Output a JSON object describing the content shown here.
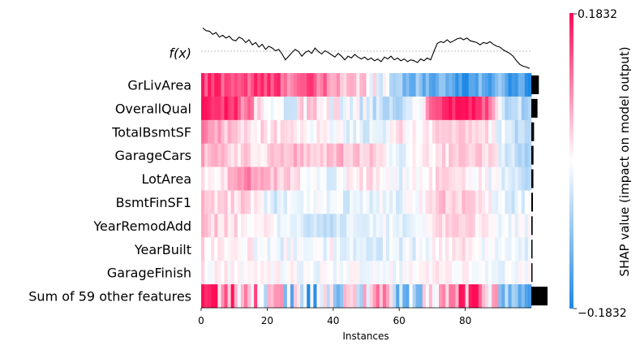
{
  "chart_data": {
    "type": "heatmap",
    "title": "",
    "xlabel": "Instances",
    "x_range": [
      0,
      100
    ],
    "x_ticks": [
      0,
      20,
      40,
      60,
      80
    ],
    "fx_label": "f(x)",
    "features": [
      "GrLivArea",
      "OverallQual",
      "TotalBsmtSF",
      "GarageCars",
      "LotArea",
      "BsmtFinSF1",
      "YearRemodAdd",
      "YearBuilt",
      "GarageFinish",
      "Sum of 59 other features"
    ],
    "mean_abs_shap": [
      0.055,
      0.045,
      0.02,
      0.016,
      0.015,
      0.012,
      0.01,
      0.009,
      0.005,
      0.118
    ],
    "colorbar": {
      "label": "SHAP value (impact on model output)",
      "max": 0.1832,
      "min": -0.1832,
      "max_label": "0.1832",
      "min_label": "−0.1832",
      "color_high": "#ff0d57",
      "color_low": "#1e88e5",
      "color_mid": "#ffffff"
    },
    "profiles": [
      [
        0.14,
        0.15,
        0.13,
        0.14,
        0.12,
        0.11,
        0.08,
        0.03,
        0.02,
        -0.07,
        -0.12,
        -0.1,
        -0.16,
        -0.12,
        -0.13,
        -0.16
      ],
      [
        0.18,
        0.17,
        0.1,
        -0.02,
        -0.03,
        0.05,
        0.0,
        -0.02,
        -0.04,
        -0.06,
        0.02,
        0.16,
        0.18,
        0.13,
        -0.05,
        -0.08
      ],
      [
        0.09,
        0.05,
        0.03,
        0.02,
        0.02,
        0.01,
        0.0,
        -0.02,
        -0.03,
        0.02,
        0.01,
        0.03,
        0.05,
        0.02,
        -0.03,
        -0.08
      ],
      [
        0.06,
        0.04,
        0.03,
        0.03,
        0.06,
        0.03,
        0.05,
        0.05,
        0.03,
        -0.02,
        0.01,
        0.03,
        0.03,
        0.03,
        -0.03,
        -0.07
      ],
      [
        0.01,
        0.03,
        0.1,
        0.05,
        0.04,
        0.0,
        -0.02,
        0.03,
        0.02,
        -0.02,
        0.0,
        0.03,
        0.02,
        0.0,
        -0.02,
        -0.05
      ],
      [
        0.04,
        0.03,
        0.03,
        -0.03,
        -0.02,
        -0.01,
        -0.02,
        -0.03,
        -0.01,
        -0.02,
        0.01,
        0.04,
        0.04,
        0.02,
        -0.03,
        -0.02
      ],
      [
        0.04,
        0.03,
        0.02,
        0.0,
        -0.02,
        -0.03,
        -0.04,
        -0.02,
        -0.01,
        -0.02,
        -0.02,
        0.02,
        0.03,
        0.02,
        -0.01,
        -0.01
      ],
      [
        0.02,
        0.02,
        0.01,
        -0.02,
        -0.01,
        -0.02,
        0.0,
        -0.02,
        -0.03,
        -0.02,
        -0.02,
        0.02,
        0.02,
        0.0,
        0.0,
        -0.02
      ],
      [
        0.01,
        0.01,
        0.01,
        0.01,
        0.0,
        -0.01,
        -0.01,
        0.0,
        0.0,
        -0.01,
        0.0,
        0.01,
        0.01,
        0.0,
        -0.01,
        -0.01
      ],
      [
        0.14,
        0.12,
        0.06,
        0.02,
        -0.03,
        -0.1,
        -0.05,
        0.02,
        0.04,
        -0.06,
        -0.08,
        0.12,
        0.14,
        0.1,
        -0.06,
        -0.12
      ]
    ],
    "fx_values": [
      0.92,
      0.86,
      0.85,
      0.78,
      0.82,
      0.72,
      0.76,
      0.7,
      0.74,
      0.66,
      0.64,
      0.72,
      0.68,
      0.6,
      0.66,
      0.55,
      0.6,
      0.5,
      0.56,
      0.45,
      0.52,
      0.48,
      0.42,
      0.45,
      0.35,
      0.22,
      0.3,
      0.38,
      0.45,
      0.4,
      0.3,
      0.38,
      0.42,
      0.36,
      0.48,
      0.4,
      0.35,
      0.42,
      0.38,
      0.33,
      0.28,
      0.36,
      0.3,
      0.22,
      0.3,
      0.26,
      0.34,
      0.28,
      0.24,
      0.28,
      0.22,
      0.26,
      0.2,
      0.24,
      0.18,
      0.28,
      0.24,
      0.3,
      0.22,
      0.26,
      0.2,
      0.24,
      0.18,
      0.22,
      0.2,
      0.16,
      0.24,
      0.2,
      0.26,
      0.22,
      0.4,
      0.58,
      0.62,
      0.6,
      0.66,
      0.6,
      0.64,
      0.68,
      0.7,
      0.66,
      0.7,
      0.64,
      0.62,
      0.6,
      0.55,
      0.6,
      0.58,
      0.62,
      0.56,
      0.52,
      0.5,
      0.44,
      0.4,
      0.36,
      0.3,
      0.2,
      0.12,
      0.08,
      0.06,
      0.03
    ]
  }
}
